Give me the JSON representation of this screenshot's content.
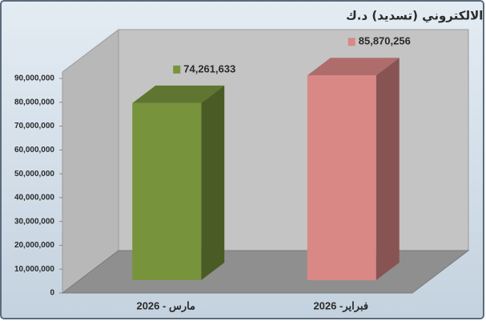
{
  "chart_data": {
    "type": "bar3d",
    "title": "اجمالي المبالغ المسددة عن طريق الدفع الالكتروني (تسديد) د.ك",
    "categories": [
      "مارس - 2026",
      "فبراير- 2026"
    ],
    "values": [
      74261633,
      85870256
    ],
    "value_labels": [
      "74,261,633",
      "85,870,256"
    ],
    "colors": [
      "#77933c",
      "#d98886"
    ],
    "ylim": [
      0,
      90000000
    ],
    "yticks": [
      0,
      {
        "value": 10000000,
        "label": "10,000,000"
      },
      {
        "value": 20000000,
        "label": "20,000,000"
      },
      {
        "value": 30000000,
        "label": "30,000,000"
      },
      {
        "value": 40000000,
        "label": "40,000,000"
      },
      {
        "value": 50000000,
        "label": "50,000,000"
      },
      {
        "value": 60000000,
        "label": "60,000,000"
      },
      {
        "value": 70000000,
        "label": "70,000,000"
      },
      {
        "value": 80000000,
        "label": "80,000,000"
      },
      {
        "value": 90000000,
        "label": "90,000,000"
      }
    ],
    "grid": false
  }
}
